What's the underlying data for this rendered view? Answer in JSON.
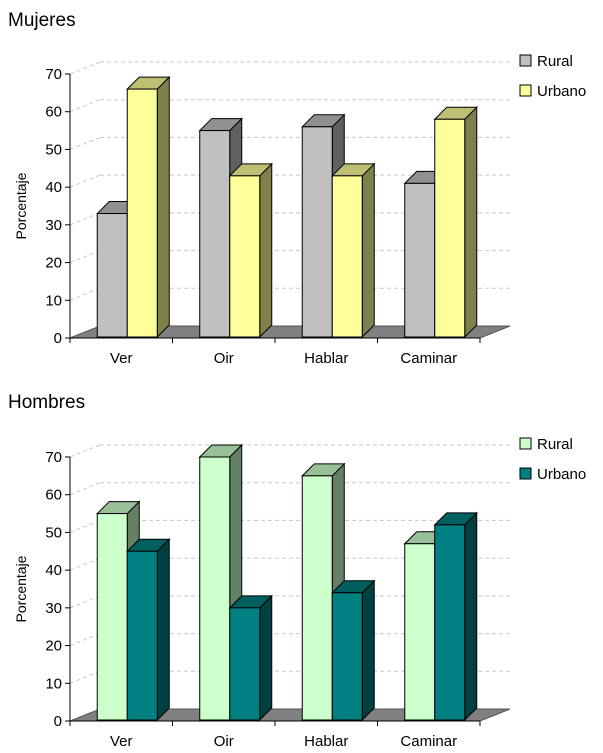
{
  "chart_data": [
    {
      "type": "bar",
      "title": "Mujeres",
      "xlabel": "",
      "ylabel": "Porcentaje",
      "categories": [
        "Ver",
        "Oir",
        "Hablar",
        "Caminar"
      ],
      "ylim": [
        0,
        70
      ],
      "yticks": [
        0,
        10,
        20,
        30,
        40,
        50,
        60,
        70
      ],
      "grid": true,
      "legend_position": "right",
      "series": [
        {
          "name": "Rural",
          "values": [
            33,
            55,
            56,
            41
          ],
          "color": "#c0c0c0"
        },
        {
          "name": "Urbano",
          "values": [
            66,
            43,
            43,
            58
          ],
          "color": "#ffff99"
        }
      ]
    },
    {
      "type": "bar",
      "title": "Hombres",
      "xlabel": "",
      "ylabel": "Porcentaje",
      "categories": [
        "Ver",
        "Oir",
        "Hablar",
        "Caminar"
      ],
      "ylim": [
        0,
        70
      ],
      "yticks": [
        0,
        10,
        20,
        30,
        40,
        50,
        60,
        70
      ],
      "grid": true,
      "legend_position": "right",
      "series": [
        {
          "name": "Rural",
          "values": [
            55,
            70,
            65,
            47
          ],
          "color": "#ccffcc"
        },
        {
          "name": "Urbano",
          "values": [
            45,
            30,
            34,
            52
          ],
          "color": "#008080"
        }
      ]
    }
  ]
}
